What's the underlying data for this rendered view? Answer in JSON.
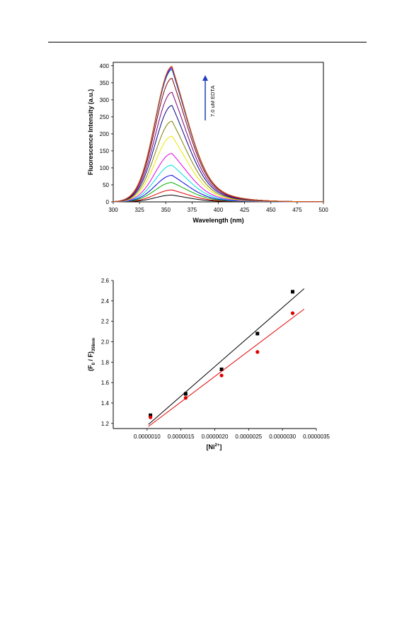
{
  "chart_data": [
    {
      "type": "line",
      "title": "",
      "xlabel": "Wavelength (nm)",
      "ylabel": "Fluorescence Intensity (a.u.)",
      "xlim": [
        300,
        500
      ],
      "ylim": [
        0,
        410
      ],
      "xticks": [
        "300",
        "325",
        "350",
        "375",
        "400",
        "425",
        "450",
        "475",
        "500"
      ],
      "yticks": [
        "0",
        "50",
        "100",
        "150",
        "200",
        "250",
        "300",
        "350",
        "400"
      ],
      "annotation": "7.0 uM EDTA",
      "annotation_color": "#1f3fbf",
      "peak_nm": 356,
      "series": [
        {
          "peak": 20,
          "color": "#000000"
        },
        {
          "peak": 35,
          "color": "#e00000"
        },
        {
          "peak": 57,
          "color": "#00b000"
        },
        {
          "peak": 78,
          "color": "#0000e0"
        },
        {
          "peak": 108,
          "color": "#00e0e0"
        },
        {
          "peak": 142,
          "color": "#e000e0"
        },
        {
          "peak": 193,
          "color": "#e8e800"
        },
        {
          "peak": 237,
          "color": "#808000"
        },
        {
          "peak": 283,
          "color": "#000090"
        },
        {
          "peak": 322,
          "color": "#800080"
        },
        {
          "peak": 363,
          "color": "#800000"
        },
        {
          "peak": 388,
          "color": "#008080"
        },
        {
          "peak": 392,
          "color": "#0000ff"
        },
        {
          "peak": 395,
          "color": "#ff00ff"
        },
        {
          "peak": 397,
          "color": "#404040"
        },
        {
          "peak": 398,
          "color": "#e06000"
        }
      ],
      "grid": false,
      "legend": false
    },
    {
      "type": "scatter",
      "title": "",
      "xlabel": "[Ni2+]",
      "xlabel_base": "[Ni",
      "xlabel_sup": "2+",
      "xlabel_end": "]",
      "ylabel": "(F0 / F)356nm",
      "ylabel_parts": [
        "(F",
        "0",
        " / F)",
        "356nm"
      ],
      "xlim": [
        5e-07,
        3.5e-06
      ],
      "ylim": [
        1.15,
        2.6
      ],
      "xticks": [
        "0.0000010",
        "0.0000015",
        "0.0000020",
        "0.0000025",
        "0.0000030",
        "0.0000035"
      ],
      "yticks": [
        "1.2",
        "1.4",
        "1.6",
        "1.8",
        "2.0",
        "2.2",
        "2.4",
        "2.6"
      ],
      "series": [
        {
          "marker": "square",
          "color": "#000000",
          "x": [
            1.05e-06,
            1.57e-06,
            2.1e-06,
            2.63e-06,
            3.15e-06
          ],
          "y": [
            1.28,
            1.49,
            1.73,
            2.08,
            2.49
          ],
          "fit": {
            "x": [
              1.02e-06,
              3.32e-06
            ],
            "y": [
              1.19,
              2.52
            ]
          }
        },
        {
          "marker": "circle",
          "color": "#e00000",
          "x": [
            1.05e-06,
            1.57e-06,
            2.1e-06,
            2.63e-06,
            3.15e-06
          ],
          "y": [
            1.26,
            1.45,
            1.67,
            1.9,
            2.28
          ],
          "fit": {
            "x": [
              1.02e-06,
              3.32e-06
            ],
            "y": [
              1.17,
              2.32
            ]
          }
        }
      ],
      "grid": false,
      "legend": false
    }
  ]
}
